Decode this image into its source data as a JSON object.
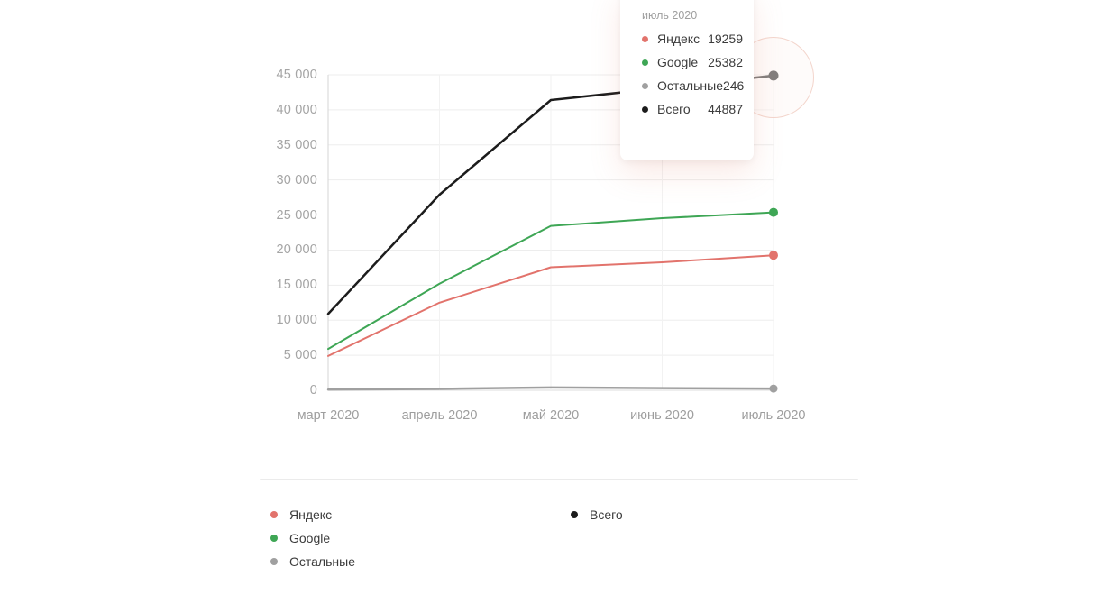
{
  "accent_colors": {
    "grid": "#ededed",
    "axis_border": "#dcdcdc",
    "vertical_grid": "#f2f2f2",
    "axis_text": "#a0a0a0",
    "highlight_ring_border": "#f3d5cc"
  },
  "tooltip": {
    "title": "июль 2020",
    "rows": [
      {
        "label": "Яндекс",
        "value": "19259"
      },
      {
        "label": "Google",
        "value": "25382"
      },
      {
        "label": "Остальные",
        "value": "246"
      },
      {
        "label": "Всего",
        "value": "44887"
      }
    ]
  },
  "chart_data": {
    "type": "line",
    "title": "",
    "xlabel": "",
    "ylabel": "",
    "x": [
      "март 2020",
      "апрель 2020",
      "май 2020",
      "июнь 2020",
      "июль 2020"
    ],
    "series": [
      {
        "name": "Яндекс",
        "color": "#e2736c",
        "width": 2,
        "dot_r": 5,
        "values": [
          4900,
          12500,
          17550,
          18250,
          19259
        ]
      },
      {
        "name": "Google",
        "color": "#3ea655",
        "width": 2,
        "dot_r": 5,
        "values": [
          5900,
          15200,
          23450,
          24550,
          25382
        ]
      },
      {
        "name": "Остальные",
        "color": "#a0a0a0",
        "width": 2.5,
        "dot_r": 4.5,
        "values": [
          100,
          200,
          400,
          300,
          246
        ]
      },
      {
        "name": "Всего",
        "color": "#1c1c1c",
        "width": 2.5,
        "dot_r": 5.5,
        "values": [
          10900,
          27900,
          41400,
          43100,
          44887
        ]
      }
    ],
    "ylim": [
      0,
      45000
    ],
    "ytick_step": 5000,
    "ytick_labels": [
      "0",
      "5 000",
      "10 000",
      "15 000",
      "20 000",
      "25 000",
      "30 000",
      "35 000",
      "40 000",
      "45 000"
    ],
    "grid": true,
    "legend_position": "bottom",
    "legend_columns": [
      [
        0,
        1,
        2
      ],
      [
        3
      ]
    ],
    "hovered_point": {
      "x": "июль 2020",
      "series": "Всего"
    }
  }
}
